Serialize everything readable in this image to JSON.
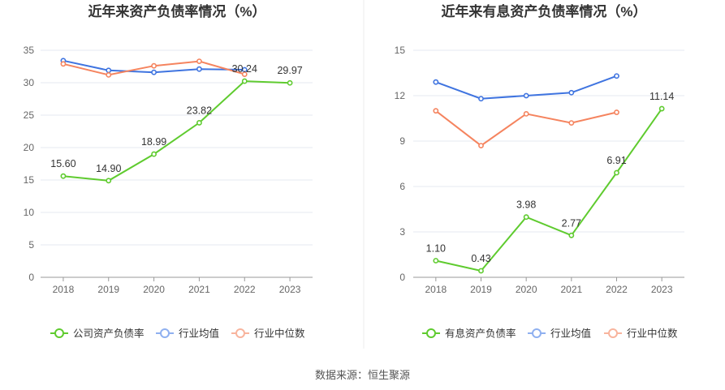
{
  "source": "数据来源：恒生聚源",
  "chart_data": [
    {
      "type": "line",
      "title": "近年来资产负债率情况（%）",
      "categories": [
        "2018",
        "2019",
        "2020",
        "2021",
        "2022",
        "2023"
      ],
      "ylim": [
        0,
        35
      ],
      "yticks": [
        0,
        5,
        10,
        15,
        20,
        25,
        30,
        35
      ],
      "grid": true,
      "legend_position": "bottom",
      "series": [
        {
          "name": "公司资产负债率",
          "color": "#5fcb2f",
          "values": [
            15.6,
            14.9,
            18.99,
            23.82,
            30.24,
            29.97
          ],
          "labels": [
            "15.60",
            "14.90",
            "18.99",
            "23.82",
            "30.24",
            "29.97"
          ]
        },
        {
          "name": "行业均值",
          "color": "#3f74e0",
          "values": [
            33.4,
            31.9,
            31.6,
            32.1,
            32.0,
            null
          ]
        },
        {
          "name": "行业中位数",
          "color": "#f5845f",
          "values": [
            32.9,
            31.2,
            32.6,
            33.3,
            31.3,
            null
          ]
        }
      ]
    },
    {
      "type": "line",
      "title": "近年来有息资产负债率情况（%）",
      "categories": [
        "2018",
        "2019",
        "2020",
        "2021",
        "2022",
        "2023"
      ],
      "ylim": [
        0,
        15
      ],
      "yticks": [
        0,
        3,
        6,
        9,
        12,
        15
      ],
      "grid": true,
      "legend_position": "bottom",
      "series": [
        {
          "name": "有息资产负债率",
          "color": "#5fcb2f",
          "values": [
            1.1,
            0.43,
            3.98,
            2.77,
            6.91,
            11.14
          ],
          "labels": [
            "1.10",
            "0.43",
            "3.98",
            "2.77",
            "6.91",
            "11.14"
          ]
        },
        {
          "name": "行业均值",
          "color": "#3f74e0",
          "values": [
            12.9,
            11.8,
            12.0,
            12.2,
            13.3,
            null
          ]
        },
        {
          "name": "行业中位数",
          "color": "#f5845f",
          "values": [
            11.0,
            8.7,
            10.8,
            10.2,
            10.9,
            null
          ]
        }
      ]
    }
  ]
}
